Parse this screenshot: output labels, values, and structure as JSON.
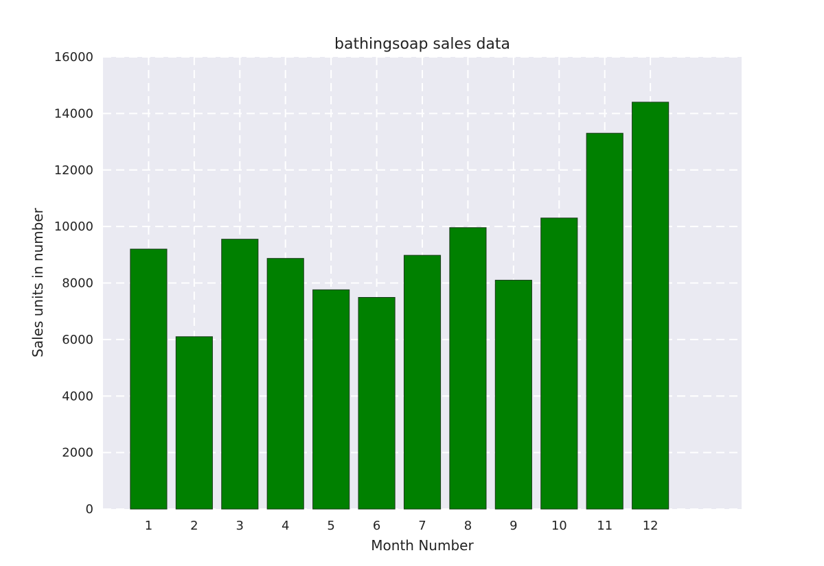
{
  "chart_data": {
    "type": "bar",
    "title": "bathingsoap sales data",
    "xlabel": "Month Number",
    "ylabel": "Sales units in number",
    "categories": [
      1,
      2,
      3,
      4,
      5,
      6,
      7,
      8,
      9,
      10,
      11,
      12
    ],
    "values": [
      9200,
      6100,
      9550,
      8870,
      7760,
      7490,
      8980,
      9960,
      8100,
      10300,
      13300,
      14400
    ],
    "xlim": [
      0,
      14
    ],
    "ylim": [
      0,
      16000
    ],
    "yticks": [
      0,
      2000,
      4000,
      6000,
      8000,
      10000,
      12000,
      14000,
      16000
    ],
    "grid": true,
    "grid_style": "dashed",
    "legend": "none",
    "colors": {
      "bar": "#008000",
      "bar_edge": "#1a3a1a",
      "plot_background": "#eaeaf2",
      "grid": "#ffffff"
    }
  }
}
